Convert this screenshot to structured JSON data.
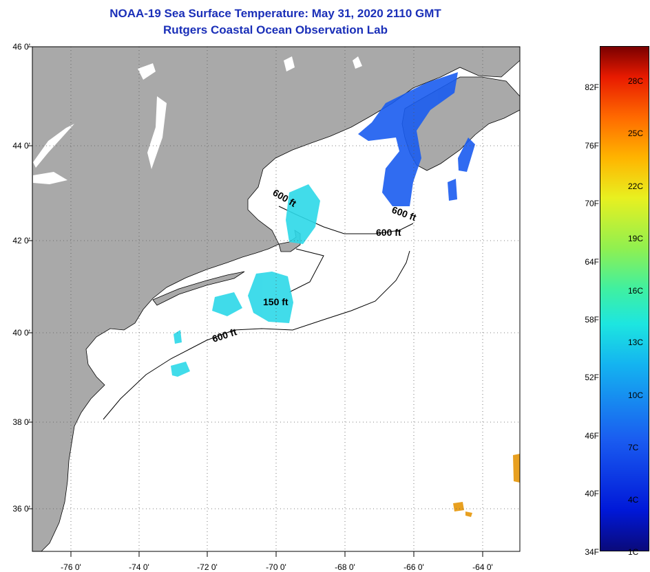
{
  "header": {
    "title": "NOAA-19 Sea Surface Temperature:  May 31, 2020 2110 GMT",
    "subtitle": "Rutgers Coastal Ocean Observation Lab"
  },
  "axes": {
    "latitudes": [
      "46 0'",
      "44 0'",
      "42 0'",
      "40 0'",
      "38 0'",
      "36 0'"
    ],
    "longitudes": [
      "-76 0'",
      "-74 0'",
      "-72 0'",
      "-70 0'",
      "-68 0'",
      "-66 0'",
      "-64 0'"
    ]
  },
  "contours": {
    "c600_a": "600 ft",
    "c600_b": "600 ft",
    "c600_c": "600 ft",
    "c600_d": "600 ft",
    "c150": "150 ft"
  },
  "colorbar": {
    "fahrenheit": [
      "82F",
      "76F",
      "70F",
      "64F",
      "58F",
      "52F",
      "46F",
      "40F",
      "34F"
    ],
    "celsius": [
      "28C",
      "25C",
      "22C",
      "19C",
      "16C",
      "13C",
      "10C",
      "7C",
      "4C",
      "1C"
    ]
  },
  "colors": {
    "land": "#a9a9a9",
    "title": "#1a2fb8",
    "cold": "#1a5cf0",
    "cool": "#2cd8e8",
    "warm": "#e8a020"
  }
}
